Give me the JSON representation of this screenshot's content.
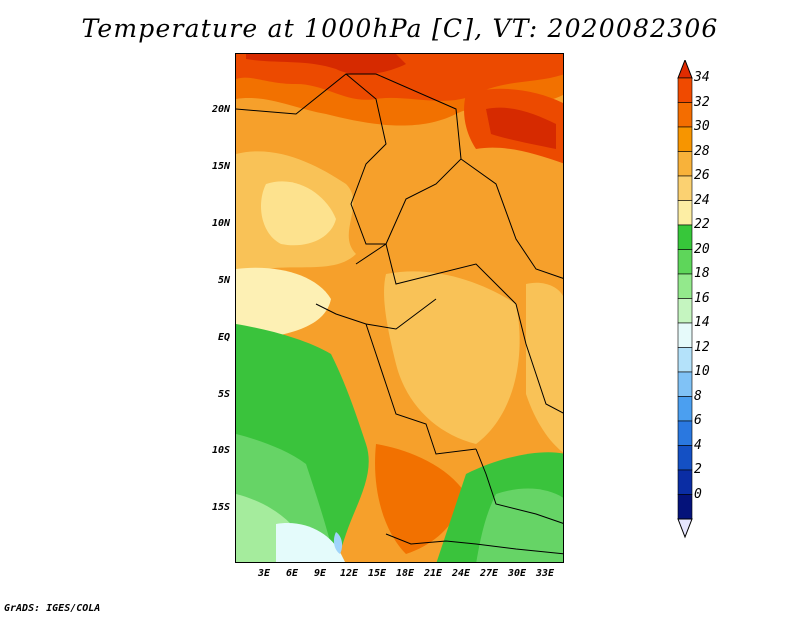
{
  "title": "Temperature at 1000hPa [C], VT: 2020082306",
  "credit": "GrADS: IGES/COLA",
  "lat_labels": [
    "20N",
    "15N",
    "10N",
    "5N",
    "EQ",
    "5S",
    "10S",
    "15S"
  ],
  "lon_labels": [
    "3E",
    "6E",
    "9E",
    "12E",
    "15E",
    "18E",
    "21E",
    "24E",
    "27E",
    "30E",
    "33E"
  ],
  "colorbar": {
    "labels": [
      "34",
      "32",
      "30",
      "28",
      "26",
      "24",
      "22",
      "20",
      "18",
      "16",
      "14",
      "12",
      "10",
      "8",
      "6",
      "4",
      "2",
      "0"
    ],
    "colors": [
      "#e12b00",
      "#f04a00",
      "#f46d00",
      "#f79500",
      "#f8b23a",
      "#fbd171",
      "#fdeea4",
      "#37c73a",
      "#5ed65a",
      "#93e98c",
      "#c5f5c0",
      "#e6fafa",
      "#b4e2fa",
      "#80c2f6",
      "#4b9ff0",
      "#2a78e0",
      "#1450c4",
      "#0a2da4",
      "#04127a"
    ]
  },
  "field_colors": {
    "t34": "#d62a00",
    "t32": "#ec4a00",
    "t30": "#f27100",
    "t28": "#f6a02b",
    "t26": "#f9c257",
    "t24": "#fde28e",
    "t22": "#fdf0b4",
    "t20": "#3ac33c",
    "t18": "#66d466",
    "t16": "#a5ec9d",
    "t14": "#cdf7c6",
    "t12": "#e4fbfb",
    "t10": "#9fd4fa"
  }
}
